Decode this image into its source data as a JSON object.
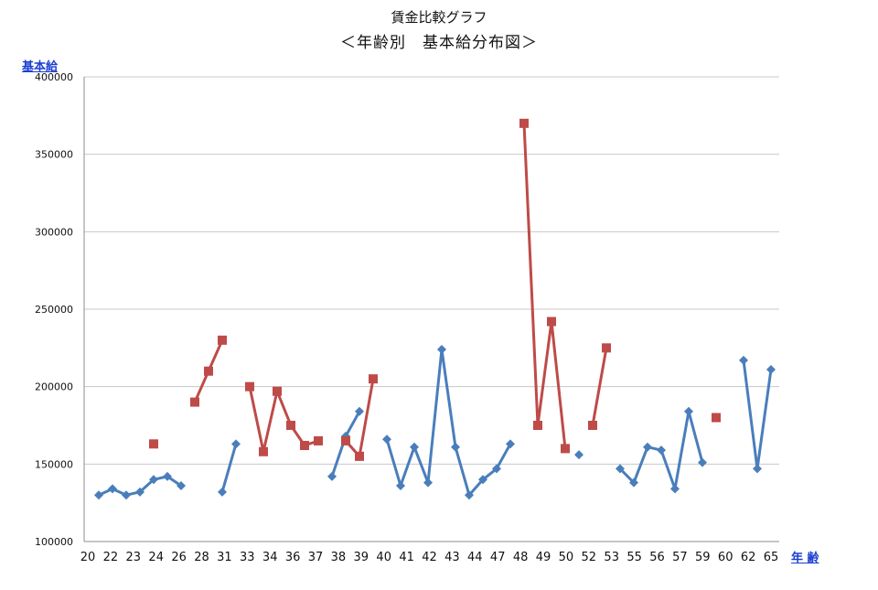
{
  "chart_data": {
    "type": "line",
    "title": "賃金比較グラフ",
    "subtitle": "＜年齢別　基本給分布図＞",
    "ylabel": "基本給",
    "xlabel": "年 齢",
    "ylim": [
      100000,
      400000
    ],
    "yticks": [
      "400000",
      "350000",
      "300000",
      "250000",
      "200000",
      "150000",
      "100000"
    ],
    "ytick_values": [
      400000,
      350000,
      300000,
      250000,
      200000,
      150000,
      100000
    ],
    "xticks": [
      "20",
      "22",
      "23",
      "24",
      "26",
      "28",
      "31",
      "33",
      "34",
      "36",
      "37",
      "38",
      "39",
      "40",
      "41",
      "42",
      "43",
      "44",
      "47",
      "48",
      "49",
      "50",
      "52",
      "53",
      "55",
      "56",
      "57",
      "59",
      "60",
      "62",
      "65"
    ],
    "legend": "none",
    "grid": "horizontal",
    "x_positions": [
      1,
      2,
      3,
      4,
      5,
      6,
      7,
      8,
      9,
      10,
      11,
      12,
      13,
      14,
      15,
      16,
      17,
      18,
      19,
      20,
      21,
      22,
      23,
      24,
      25,
      26,
      27,
      28,
      29,
      30,
      31,
      32,
      33,
      34,
      35,
      36,
      37,
      38,
      39,
      40,
      41,
      42,
      43,
      44,
      45,
      46,
      47,
      48,
      49,
      50
    ],
    "series": [
      {
        "color": "#4a7ebb",
        "marker": "diamond",
        "values": [
          130000,
          134000,
          130000,
          132000,
          140000,
          142000,
          136000,
          null,
          null,
          132000,
          163000,
          null,
          null,
          null,
          null,
          null,
          null,
          142000,
          168000,
          184000,
          null,
          166000,
          136000,
          161000,
          138000,
          224000,
          161000,
          130000,
          140000,
          147000,
          163000,
          null,
          null,
          null,
          null,
          156000,
          null,
          null,
          147000,
          138000,
          161000,
          159000,
          134000,
          184000,
          151000,
          null,
          null,
          217000,
          147000,
          211000
        ]
      },
      {
        "color": "#be4b48",
        "marker": "square",
        "values": [
          null,
          null,
          null,
          null,
          163000,
          null,
          null,
          190000,
          210000,
          230000,
          null,
          200000,
          158000,
          197000,
          175000,
          162000,
          165000,
          null,
          165000,
          155000,
          205000,
          null,
          null,
          null,
          null,
          null,
          null,
          null,
          null,
          null,
          null,
          370000,
          175000,
          242000,
          160000,
          null,
          175000,
          225000,
          null,
          null,
          null,
          null,
          null,
          null,
          null,
          180000,
          null,
          null,
          null,
          null
        ]
      }
    ]
  },
  "colors": {
    "grid": "#c8c8c8",
    "axis": "#8c8c8c",
    "label": "#1a3fd0"
  }
}
